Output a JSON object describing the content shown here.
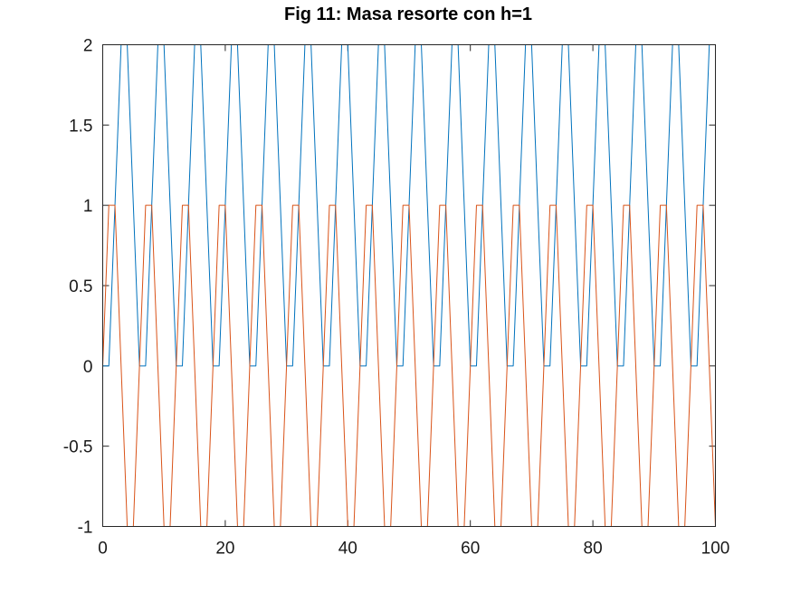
{
  "chart_data": {
    "type": "line",
    "title": "Fig 11: Masa resorte con h=1",
    "xlabel": "",
    "ylabel": "",
    "xlim": [
      0,
      100
    ],
    "ylim": [
      -1,
      2
    ],
    "x_ticks": [
      0,
      20,
      40,
      60,
      80,
      100
    ],
    "x_tick_labels": [
      "0",
      "20",
      "40",
      "60",
      "80",
      "100"
    ],
    "y_ticks": [
      -1,
      -0.5,
      0,
      0.5,
      1,
      1.5,
      2
    ],
    "y_tick_labels": [
      "-1",
      "-0.5",
      "0",
      "0.5",
      "1",
      "1.5",
      "2"
    ],
    "grid": false,
    "legend": "none",
    "series": [
      {
        "color": "#0072bd",
        "x": [
          0,
          1,
          2,
          3,
          4,
          5,
          6,
          7,
          8,
          9,
          10,
          11,
          12,
          13,
          14,
          15,
          16,
          17,
          18,
          19,
          20,
          21,
          22,
          23,
          24,
          25,
          26,
          27,
          28,
          29,
          30,
          31,
          32,
          33,
          34,
          35,
          36,
          37,
          38,
          39,
          40,
          41,
          42,
          43,
          44,
          45,
          46,
          47,
          48,
          49,
          50,
          51,
          52,
          53,
          54,
          55,
          56,
          57,
          58,
          59,
          60,
          61,
          62,
          63,
          64,
          65,
          66,
          67,
          68,
          69,
          70,
          71,
          72,
          73,
          74,
          75,
          76,
          77,
          78,
          79,
          80,
          81,
          82,
          83,
          84,
          85,
          86,
          87,
          88,
          89,
          90,
          91,
          92,
          93,
          94,
          95,
          96,
          97,
          98,
          99,
          100
        ],
        "values": [
          0,
          0,
          1,
          2,
          2,
          1,
          0,
          0,
          1,
          2,
          2,
          1,
          0,
          0,
          1,
          2,
          2,
          1,
          0,
          0,
          1,
          2,
          2,
          1,
          0,
          0,
          1,
          2,
          2,
          1,
          0,
          0,
          1,
          2,
          2,
          1,
          0,
          0,
          1,
          2,
          2,
          1,
          0,
          0,
          1,
          2,
          2,
          1,
          0,
          0,
          1,
          2,
          2,
          1,
          0,
          0,
          1,
          2,
          2,
          1,
          0,
          0,
          1,
          2,
          2,
          1,
          0,
          0,
          1,
          2,
          2,
          1,
          0,
          0,
          1,
          2,
          2,
          1,
          0,
          0,
          1,
          2,
          2,
          1,
          0,
          0,
          1,
          2,
          2,
          1,
          0,
          0,
          1,
          2,
          2,
          1,
          0,
          0,
          1,
          2,
          2
        ]
      },
      {
        "color": "#d95319",
        "x": [
          0,
          1,
          2,
          3,
          4,
          5,
          6,
          7,
          8,
          9,
          10,
          11,
          12,
          13,
          14,
          15,
          16,
          17,
          18,
          19,
          20,
          21,
          22,
          23,
          24,
          25,
          26,
          27,
          28,
          29,
          30,
          31,
          32,
          33,
          34,
          35,
          36,
          37,
          38,
          39,
          40,
          41,
          42,
          43,
          44,
          45,
          46,
          47,
          48,
          49,
          50,
          51,
          52,
          53,
          54,
          55,
          56,
          57,
          58,
          59,
          60,
          61,
          62,
          63,
          64,
          65,
          66,
          67,
          68,
          69,
          70,
          71,
          72,
          73,
          74,
          75,
          76,
          77,
          78,
          79,
          80,
          81,
          82,
          83,
          84,
          85,
          86,
          87,
          88,
          89,
          90,
          91,
          92,
          93,
          94,
          95,
          96,
          97,
          98,
          99,
          100
        ],
        "values": [
          0,
          1,
          1,
          0,
          -1,
          -1,
          0,
          1,
          1,
          0,
          -1,
          -1,
          0,
          1,
          1,
          0,
          -1,
          -1,
          0,
          1,
          1,
          0,
          -1,
          -1,
          0,
          1,
          1,
          0,
          -1,
          -1,
          0,
          1,
          1,
          0,
          -1,
          -1,
          0,
          1,
          1,
          0,
          -1,
          -1,
          0,
          1,
          1,
          0,
          -1,
          -1,
          0,
          1,
          1,
          0,
          -1,
          -1,
          0,
          1,
          1,
          0,
          -1,
          -1,
          0,
          1,
          1,
          0,
          -1,
          -1,
          0,
          1,
          1,
          0,
          -1,
          -1,
          0,
          1,
          1,
          0,
          -1,
          -1,
          0,
          1,
          1,
          0,
          -1,
          -1,
          0,
          1,
          1,
          0,
          -1,
          -1,
          0,
          1,
          1,
          0,
          -1,
          -1,
          0,
          1,
          1,
          0,
          -1
        ]
      }
    ]
  }
}
